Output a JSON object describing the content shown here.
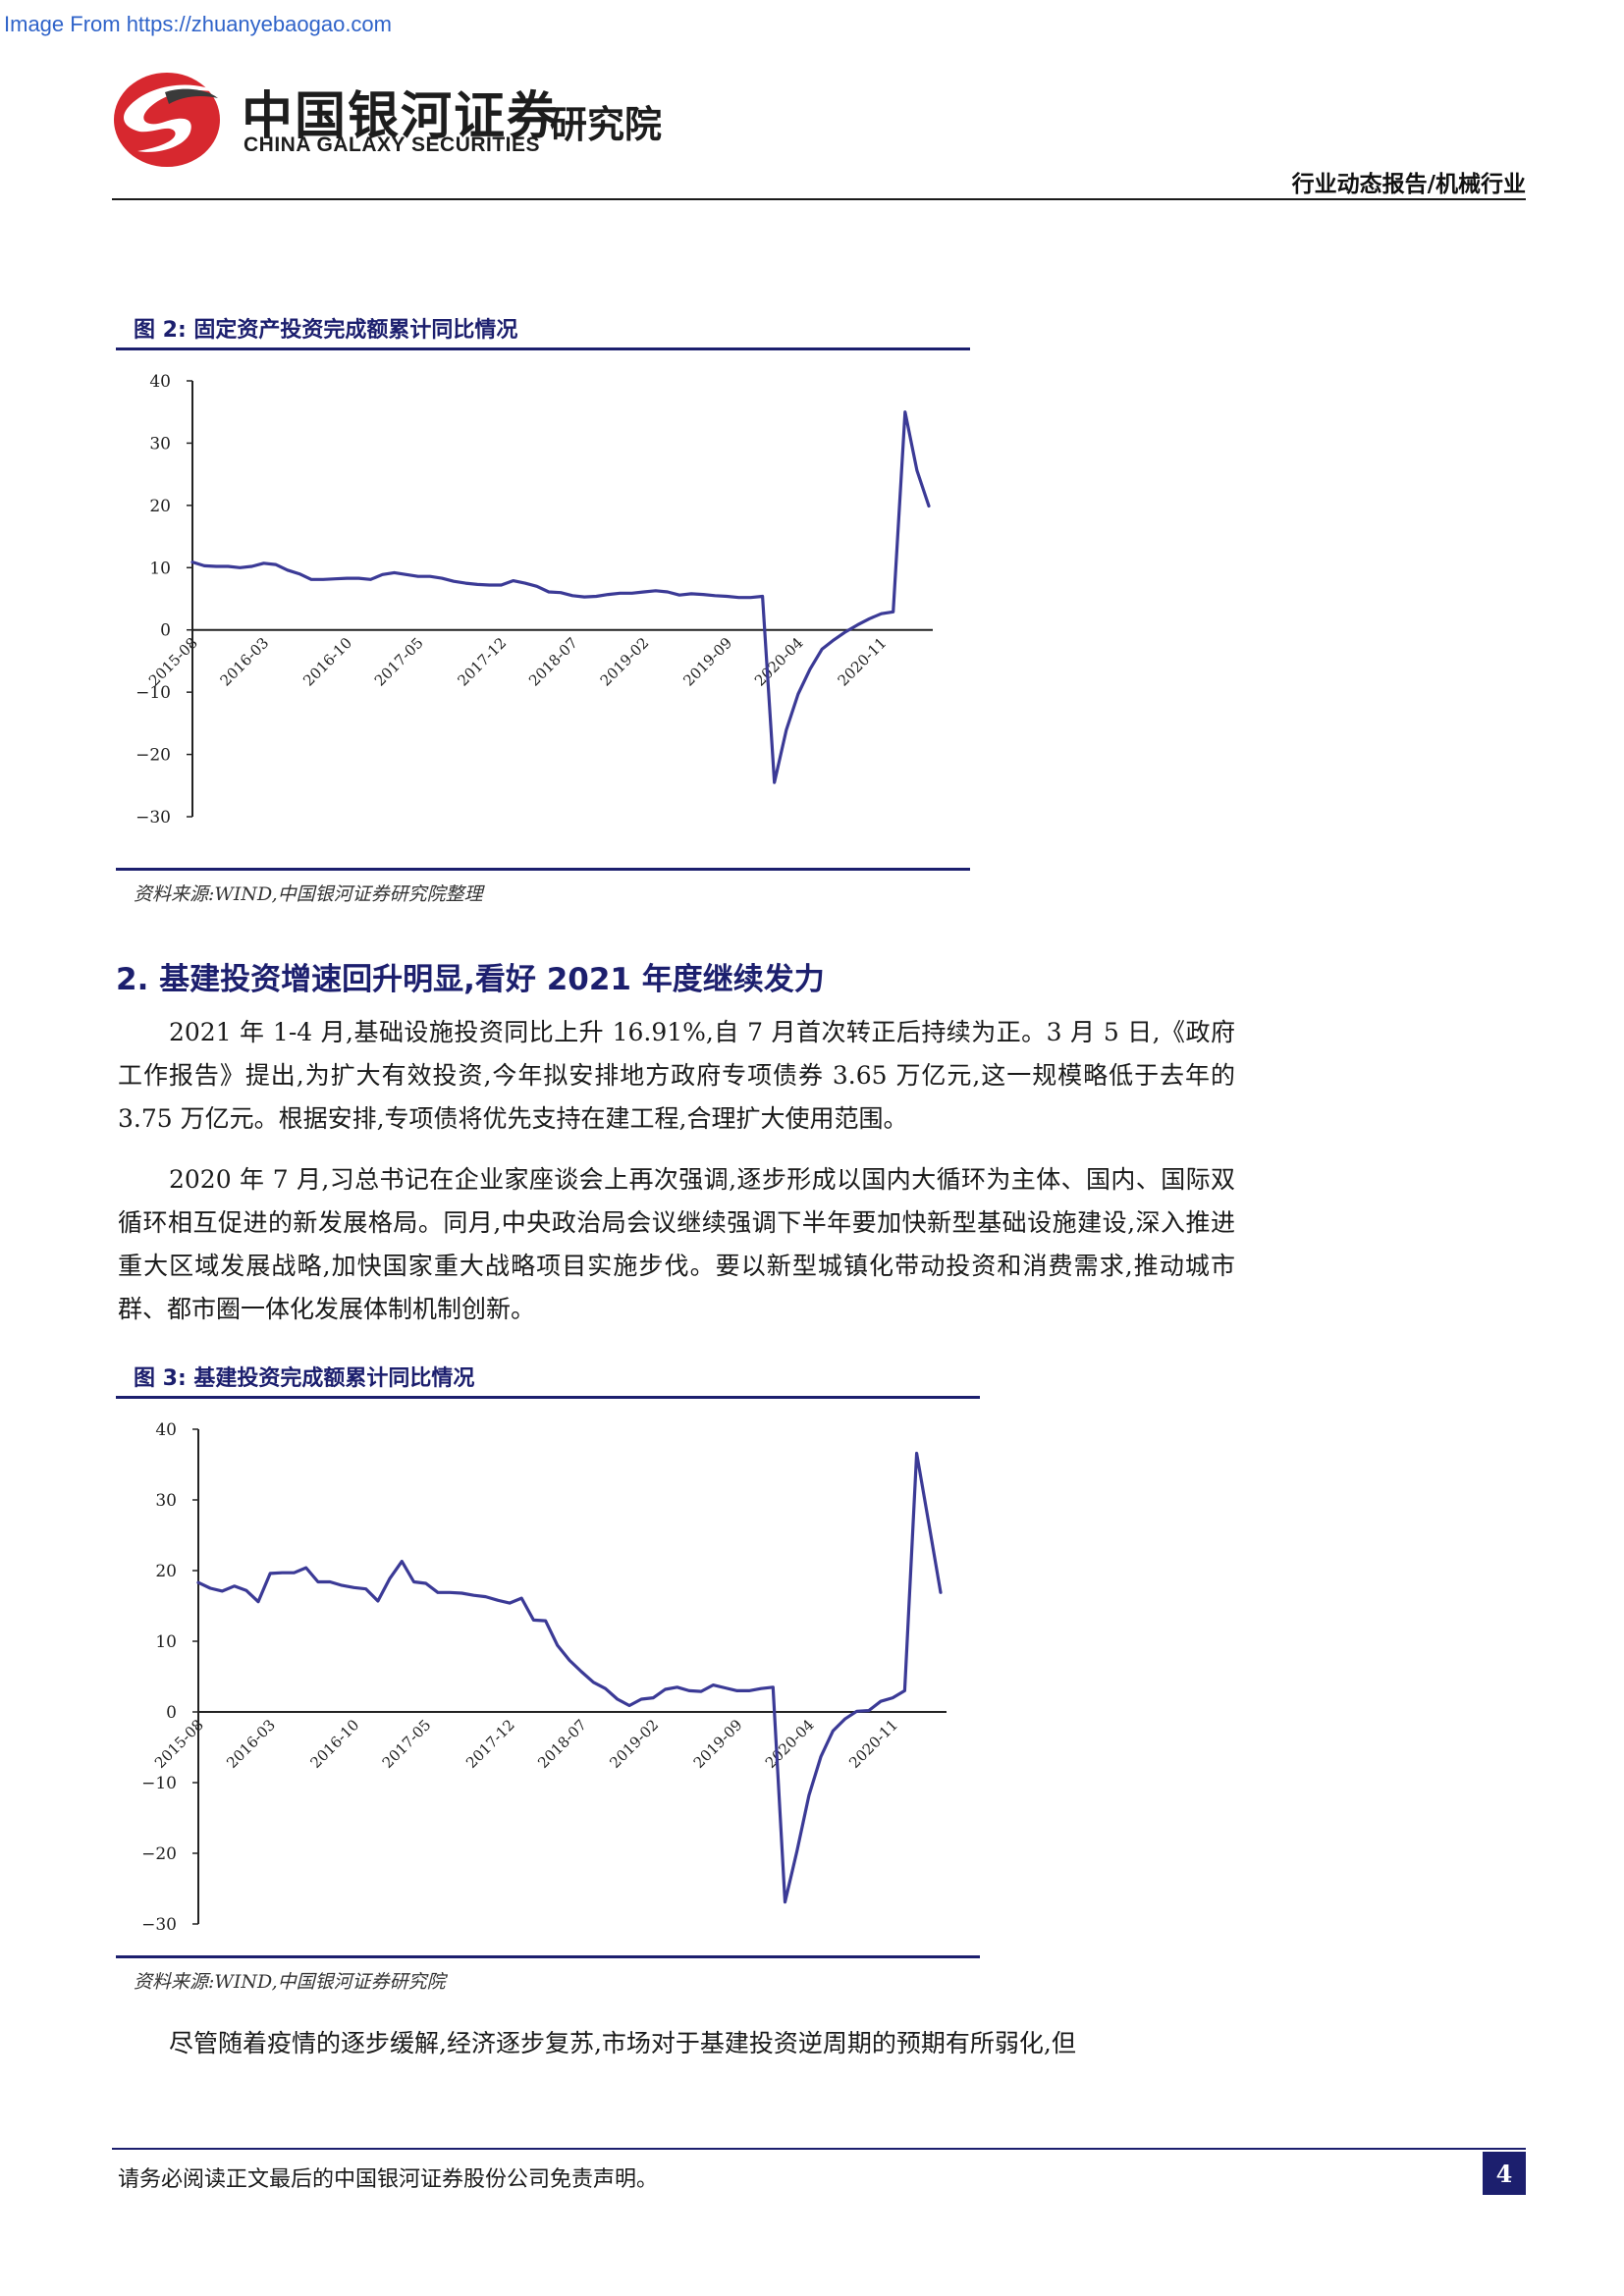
{
  "watermark": "Image From https://zhuanyebaogao.com",
  "header": {
    "brand_cn": "中国银河证券",
    "brand_en": "CHINA GALAXY SECURITIES",
    "institute": "研究院",
    "report_type": "行业动态报告/机械行业",
    "colors": {
      "logo_red": "#d7282f",
      "logo_dark": "#3a3a3a",
      "accent": "#1c1f6e"
    }
  },
  "figure2": {
    "title": "图 2:  固定资产投资完成额累计同比情况",
    "source": "资料来源:WIND,中国银河证券研究院整理",
    "chart_data": {
      "type": "line",
      "title": "",
      "xlabel": "",
      "ylabel": "",
      "ylim": [
        -30,
        40
      ],
      "yticks": [
        "40",
        "30",
        "20",
        "10",
        "0",
        "-10",
        "-20",
        "-30"
      ],
      "xticks": [
        "2015-08",
        "2016-03",
        "2016-10",
        "2017-05",
        "2017-12",
        "2018-07",
        "2019-02",
        "2019-09",
        "2020-04",
        "2020-11"
      ],
      "x": [
        "2015-08",
        "2015-09",
        "2015-10",
        "2015-11",
        "2015-12",
        "2016-02",
        "2016-03",
        "2016-04",
        "2016-05",
        "2016-06",
        "2016-07",
        "2016-08",
        "2016-09",
        "2016-10",
        "2016-11",
        "2016-12",
        "2017-02",
        "2017-03",
        "2017-04",
        "2017-05",
        "2017-06",
        "2017-07",
        "2017-08",
        "2017-09",
        "2017-10",
        "2017-11",
        "2017-12",
        "2018-02",
        "2018-03",
        "2018-04",
        "2018-05",
        "2018-06",
        "2018-07",
        "2018-08",
        "2018-09",
        "2018-10",
        "2018-11",
        "2018-12",
        "2019-02",
        "2019-03",
        "2019-04",
        "2019-05",
        "2019-06",
        "2019-07",
        "2019-08",
        "2019-09",
        "2019-10",
        "2019-11",
        "2019-12",
        "2020-02",
        "2020-03",
        "2020-04",
        "2020-05",
        "2020-06",
        "2020-07",
        "2020-08",
        "2020-09",
        "2020-10",
        "2020-11",
        "2020-12",
        "2021-02",
        "2021-03",
        "2021-04"
      ],
      "series": [
        {
          "color": "#3b3a96",
          "values": [
            10.9,
            10.3,
            10.2,
            10.2,
            10.0,
            10.2,
            10.7,
            10.5,
            9.6,
            9.0,
            8.1,
            8.1,
            8.2,
            8.3,
            8.3,
            8.1,
            8.9,
            9.2,
            8.9,
            8.6,
            8.6,
            8.3,
            7.8,
            7.5,
            7.3,
            7.2,
            7.2,
            7.9,
            7.5,
            7.0,
            6.1,
            6.0,
            5.5,
            5.3,
            5.4,
            5.7,
            5.9,
            5.9,
            6.1,
            6.3,
            6.1,
            5.6,
            5.8,
            5.7,
            5.5,
            5.4,
            5.2,
            5.2,
            5.4,
            -24.5,
            -16.1,
            -10.3,
            -6.3,
            -3.1,
            -1.6,
            -0.3,
            0.8,
            1.8,
            2.6,
            2.9,
            35.0,
            25.6,
            19.9
          ]
        }
      ]
    }
  },
  "section2": {
    "title": "2. 基建投资增速回升明显,看好 2021 年度继续发力",
    "para1": "2021 年 1-4 月,基础设施投资同比上升 16.91%,自 7 月首次转正后持续为正。3 月 5 日,《政府工作报告》提出,为扩大有效投资,今年拟安排地方政府专项债券 3.65 万亿元,这一规模略低于去年的 3.75 万亿元。根据安排,专项债将优先支持在建工程,合理扩大使用范围。",
    "para2": "2020 年 7 月,习总书记在企业家座谈会上再次强调,逐步形成以国内大循环为主体、国内、国际双循环相互促进的新发展格局。同月,中央政治局会议继续强调下半年要加快新型基础设施建设,深入推进重大区域发展战略,加快国家重大战略项目实施步伐。要以新型城镇化带动投资和消费需求,推动城市群、都市圈一体化发展体制机制创新。"
  },
  "figure3": {
    "title": "图 3:  基建投资完成额累计同比情况",
    "source": "资料来源:WIND,中国银河证券研究院",
    "chart_data": {
      "type": "line",
      "title": "",
      "xlabel": "",
      "ylabel": "",
      "ylim": [
        -30,
        40
      ],
      "yticks": [
        "40",
        "30",
        "20",
        "10",
        "0",
        "-10",
        "-20",
        "-30"
      ],
      "xticks": [
        "2015-08",
        "2016-03",
        "2016-10",
        "2017-05",
        "2017-12",
        "2018-07",
        "2019-02",
        "2019-09",
        "2020-04",
        "2020-11"
      ],
      "x": [
        "2015-08",
        "2015-09",
        "2015-10",
        "2015-11",
        "2015-12",
        "2016-02",
        "2016-03",
        "2016-04",
        "2016-05",
        "2016-06",
        "2016-07",
        "2016-08",
        "2016-09",
        "2016-10",
        "2016-11",
        "2016-12",
        "2017-02",
        "2017-03",
        "2017-04",
        "2017-05",
        "2017-06",
        "2017-07",
        "2017-08",
        "2017-09",
        "2017-10",
        "2017-11",
        "2017-12",
        "2018-02",
        "2018-03",
        "2018-04",
        "2018-05",
        "2018-06",
        "2018-07",
        "2018-08",
        "2018-09",
        "2018-10",
        "2018-11",
        "2018-12",
        "2019-02",
        "2019-03",
        "2019-04",
        "2019-05",
        "2019-06",
        "2019-07",
        "2019-08",
        "2019-09",
        "2019-10",
        "2019-11",
        "2019-12",
        "2020-02",
        "2020-03",
        "2020-04",
        "2020-05",
        "2020-06",
        "2020-07",
        "2020-08",
        "2020-09",
        "2020-10",
        "2020-11",
        "2020-12",
        "2021-02",
        "2021-03",
        "2021-04"
      ],
      "series": [
        {
          "color": "#3b3a96",
          "values": [
            18.3,
            17.5,
            17.1,
            17.8,
            17.2,
            15.6,
            19.6,
            19.7,
            19.7,
            20.4,
            18.4,
            18.4,
            17.9,
            17.6,
            17.4,
            15.7,
            18.9,
            21.3,
            18.4,
            18.2,
            16.9,
            16.9,
            16.8,
            16.5,
            16.3,
            15.8,
            15.4,
            16.1,
            13.0,
            12.9,
            9.4,
            7.3,
            5.7,
            4.2,
            3.3,
            1.8,
            0.9,
            1.8,
            2.0,
            3.2,
            3.5,
            3.0,
            2.9,
            3.8,
            3.4,
            3.0,
            3.0,
            3.3,
            3.5,
            -26.9,
            -19.7,
            -11.8,
            -6.3,
            -2.7,
            -1.0,
            0.1,
            0.2,
            1.5,
            2.0,
            3.0,
            36.6,
            26.8,
            16.9
          ]
        }
      ]
    }
  },
  "closing_para": "尽管随着疫情的逐步缓解,经济逐步复苏,市场对于基建投资逆周期的预期有所弱化,但",
  "footer": {
    "disclaimer": "请务必阅读正文最后的中国银河证券股份公司免责声明。",
    "page_number": "4"
  }
}
